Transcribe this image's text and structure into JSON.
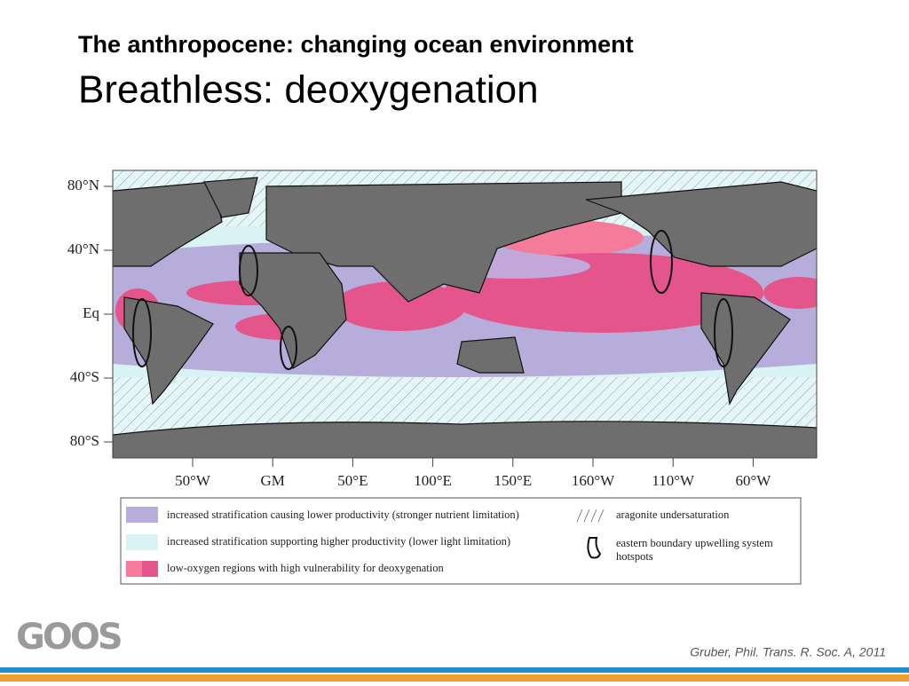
{
  "slide": {
    "title": "The anthropocene: changing ocean environment",
    "subtitle": "Breathless: deoxygenation",
    "map": {
      "lat_labels": [
        "80°N",
        "40°N",
        "Eq",
        "40°S",
        "80°S"
      ],
      "lon_labels": [
        "50°W",
        "GM",
        "50°E",
        "100°E",
        "150°E",
        "160°W",
        "110°W",
        "60°W"
      ]
    },
    "legend": [
      "increased stratification causing lower productivity (stronger nutrient limitation)",
      "increased stratification supporting higher productivity (lower light limitation)",
      "low-oxygen regions with high vulnerability for deoxygenation",
      "aragonite undersaturation",
      "eastern boundary upwelling system hotspots"
    ],
    "logo": "GOOS",
    "citation": "Gruber, Phil. Trans. R. Soc. A, 2011"
  }
}
